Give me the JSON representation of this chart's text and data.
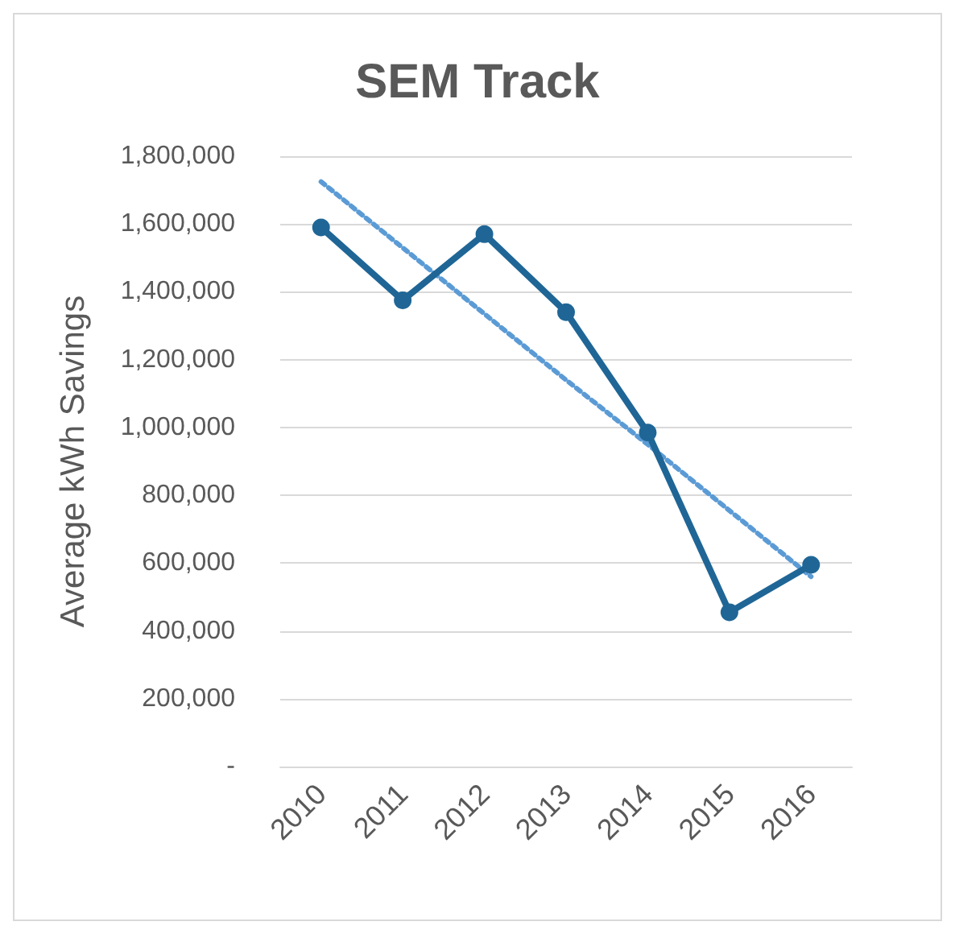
{
  "chart_data": {
    "type": "line",
    "title": "SEM Track",
    "ylabel": "Average kWh Savings",
    "categories": [
      "2010",
      "2011",
      "2012",
      "2013",
      "2014",
      "2015",
      "2016"
    ],
    "series": [
      {
        "color": "#1f6696",
        "values": [
          1590000,
          1375000,
          1570000,
          1340000,
          985000,
          455000,
          595000
        ],
        "marker": "circle",
        "line_style": "solid"
      },
      {
        "type": "line",
        "color": "#5b9bd5",
        "values": [
          1725000,
          1530000,
          1335000,
          1140000,
          950000,
          755000,
          560000
        ],
        "marker": "none",
        "line_style": "dotted"
      }
    ],
    "ylim": [
      0,
      1800000
    ],
    "yticks": [
      {
        "value": 0,
        "label": "-"
      },
      {
        "value": 200000,
        "label": "200,000"
      },
      {
        "value": 400000,
        "label": "400,000"
      },
      {
        "value": 600000,
        "label": "600,000"
      },
      {
        "value": 800000,
        "label": "800,000"
      },
      {
        "value": 1000000,
        "label": "1,000,000"
      },
      {
        "value": 1200000,
        "label": "1,200,000"
      },
      {
        "value": 1400000,
        "label": "1,400,000"
      },
      {
        "value": 1600000,
        "label": "1,600,000"
      },
      {
        "value": 1800000,
        "label": "1,800,000"
      }
    ],
    "grid": "y"
  }
}
